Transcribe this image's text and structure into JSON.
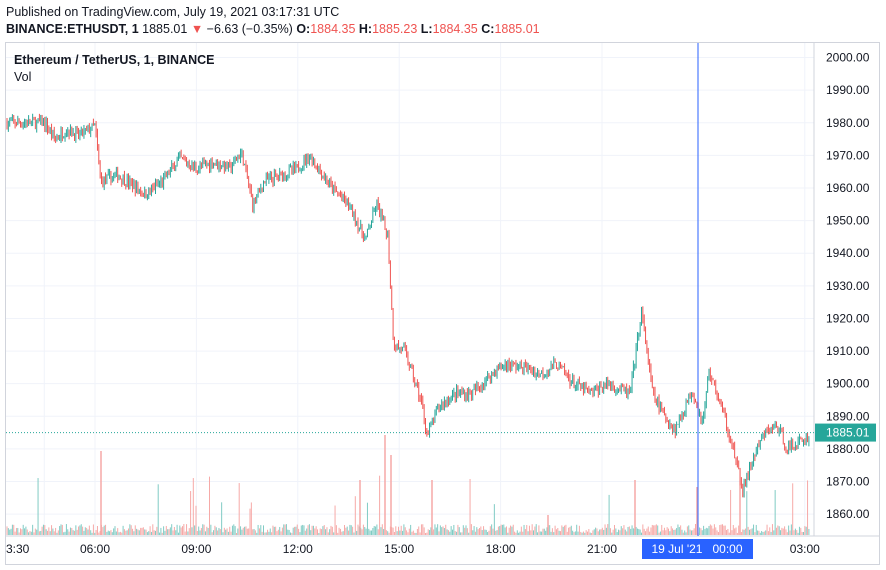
{
  "header": {
    "published": "Published on TradingView.com, July 19, 2021 03:17:31 UTC",
    "symbol": "BINANCE:ETHUSDT, 1",
    "last": "1885.01",
    "change": "−6.63 (−0.35%)",
    "o_label": "O:",
    "o_value": "1884.35",
    "h_label": "H:",
    "h_value": "1885.23",
    "l_label": "L:",
    "l_value": "1884.35",
    "c_label": "C:",
    "c_value": "1885.01"
  },
  "legend": {
    "title": "Ethereum / TetherUS, 1, BINANCE",
    "volume": "Vol"
  },
  "colors": {
    "up": "#26a69a",
    "down": "#ef5350",
    "crosshair": "#2962ff",
    "price_label": "#26a69a"
  },
  "chart_data": {
    "type": "candlestick",
    "y_ticks": [
      "2000.00",
      "1990.00",
      "1980.00",
      "1970.00",
      "1960.00",
      "1950.00",
      "1940.00",
      "1930.00",
      "1920.00",
      "1910.00",
      "1900.00",
      "1890.00",
      "1880.00",
      "1870.00",
      "1860.00"
    ],
    "x_ticks": [
      "3:30",
      "06:00",
      "09:00",
      "12:00",
      "15:00",
      "18:00",
      "21:00",
      "03:00"
    ],
    "ylim": [
      1856,
      2002
    ],
    "last_price_label": "1885.01",
    "crosshair_label": "19 Jul '21   00:00",
    "price_path": [
      [
        "04:30",
        1980
      ],
      [
        "04:50",
        1975
      ],
      [
        "05:10",
        1978
      ],
      [
        "05:30",
        1976
      ],
      [
        "06:00",
        1979
      ],
      [
        "06:10",
        1962
      ],
      [
        "06:40",
        1964
      ],
      [
        "07:30",
        1958
      ],
      [
        "08:00",
        1962
      ],
      [
        "08:30",
        1969
      ],
      [
        "09:00",
        1966
      ],
      [
        "09:30",
        1968
      ],
      [
        "10:00",
        1966
      ],
      [
        "10:20",
        1971
      ],
      [
        "10:40",
        1955
      ],
      [
        "11:00",
        1962
      ],
      [
        "11:30",
        1964
      ],
      [
        "12:00",
        1966
      ],
      [
        "12:20",
        1970
      ],
      [
        "12:40",
        1965
      ],
      [
        "13:00",
        1960
      ],
      [
        "13:30",
        1955
      ],
      [
        "14:00",
        1944
      ],
      [
        "14:20",
        1955
      ],
      [
        "14:40",
        1945
      ],
      [
        "14:50",
        1912
      ],
      [
        "15:10",
        1910
      ],
      [
        "15:40",
        1894
      ],
      [
        "15:50",
        1884
      ],
      [
        "16:10",
        1893
      ],
      [
        "16:40",
        1897
      ],
      [
        "17:10",
        1897
      ],
      [
        "17:50",
        1904
      ],
      [
        "18:10",
        1906
      ],
      [
        "18:40",
        1905
      ],
      [
        "19:10",
        1903
      ],
      [
        "19:40",
        1906
      ],
      [
        "20:10",
        1900
      ],
      [
        "20:40",
        1897
      ],
      [
        "21:10",
        1900
      ],
      [
        "21:50",
        1897
      ],
      [
        "22:10",
        1922
      ],
      [
        "22:30",
        1897
      ],
      [
        "22:50",
        1890
      ],
      [
        "23:10",
        1886
      ],
      [
        "23:40",
        1898
      ],
      [
        "23:59",
        1888
      ],
      [
        "00:10",
        1904
      ],
      [
        "00:30",
        1894
      ],
      [
        "00:50",
        1882
      ],
      [
        "01:10",
        1867
      ],
      [
        "01:30",
        1878
      ],
      [
        "01:50",
        1885
      ],
      [
        "02:10",
        1887
      ],
      [
        "02:30",
        1880
      ],
      [
        "02:50",
        1882
      ],
      [
        "03:17",
        1885.01
      ]
    ]
  }
}
